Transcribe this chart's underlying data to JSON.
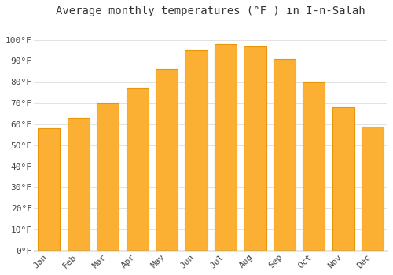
{
  "title": "Average monthly temperatures (°F ) in I-n-Salah",
  "months": [
    "Jan",
    "Feb",
    "Mar",
    "Apr",
    "May",
    "Jun",
    "Jul",
    "Aug",
    "Sep",
    "Oct",
    "Nov",
    "Dec"
  ],
  "values": [
    58,
    63,
    70,
    77,
    86,
    95,
    98,
    97,
    91,
    80,
    68,
    59
  ],
  "bar_color": "#FBB034",
  "bar_edge_color": "#E8950A",
  "background_color": "#FFFFFF",
  "plot_bg_color": "#FFFFFF",
  "grid_color": "#DDDDDD",
  "ylim": [
    0,
    108
  ],
  "yticks": [
    0,
    10,
    20,
    30,
    40,
    50,
    60,
    70,
    80,
    90,
    100
  ],
  "title_fontsize": 10,
  "tick_fontsize": 8,
  "bar_width": 0.75,
  "figsize": [
    5.0,
    3.5
  ],
  "dpi": 100
}
